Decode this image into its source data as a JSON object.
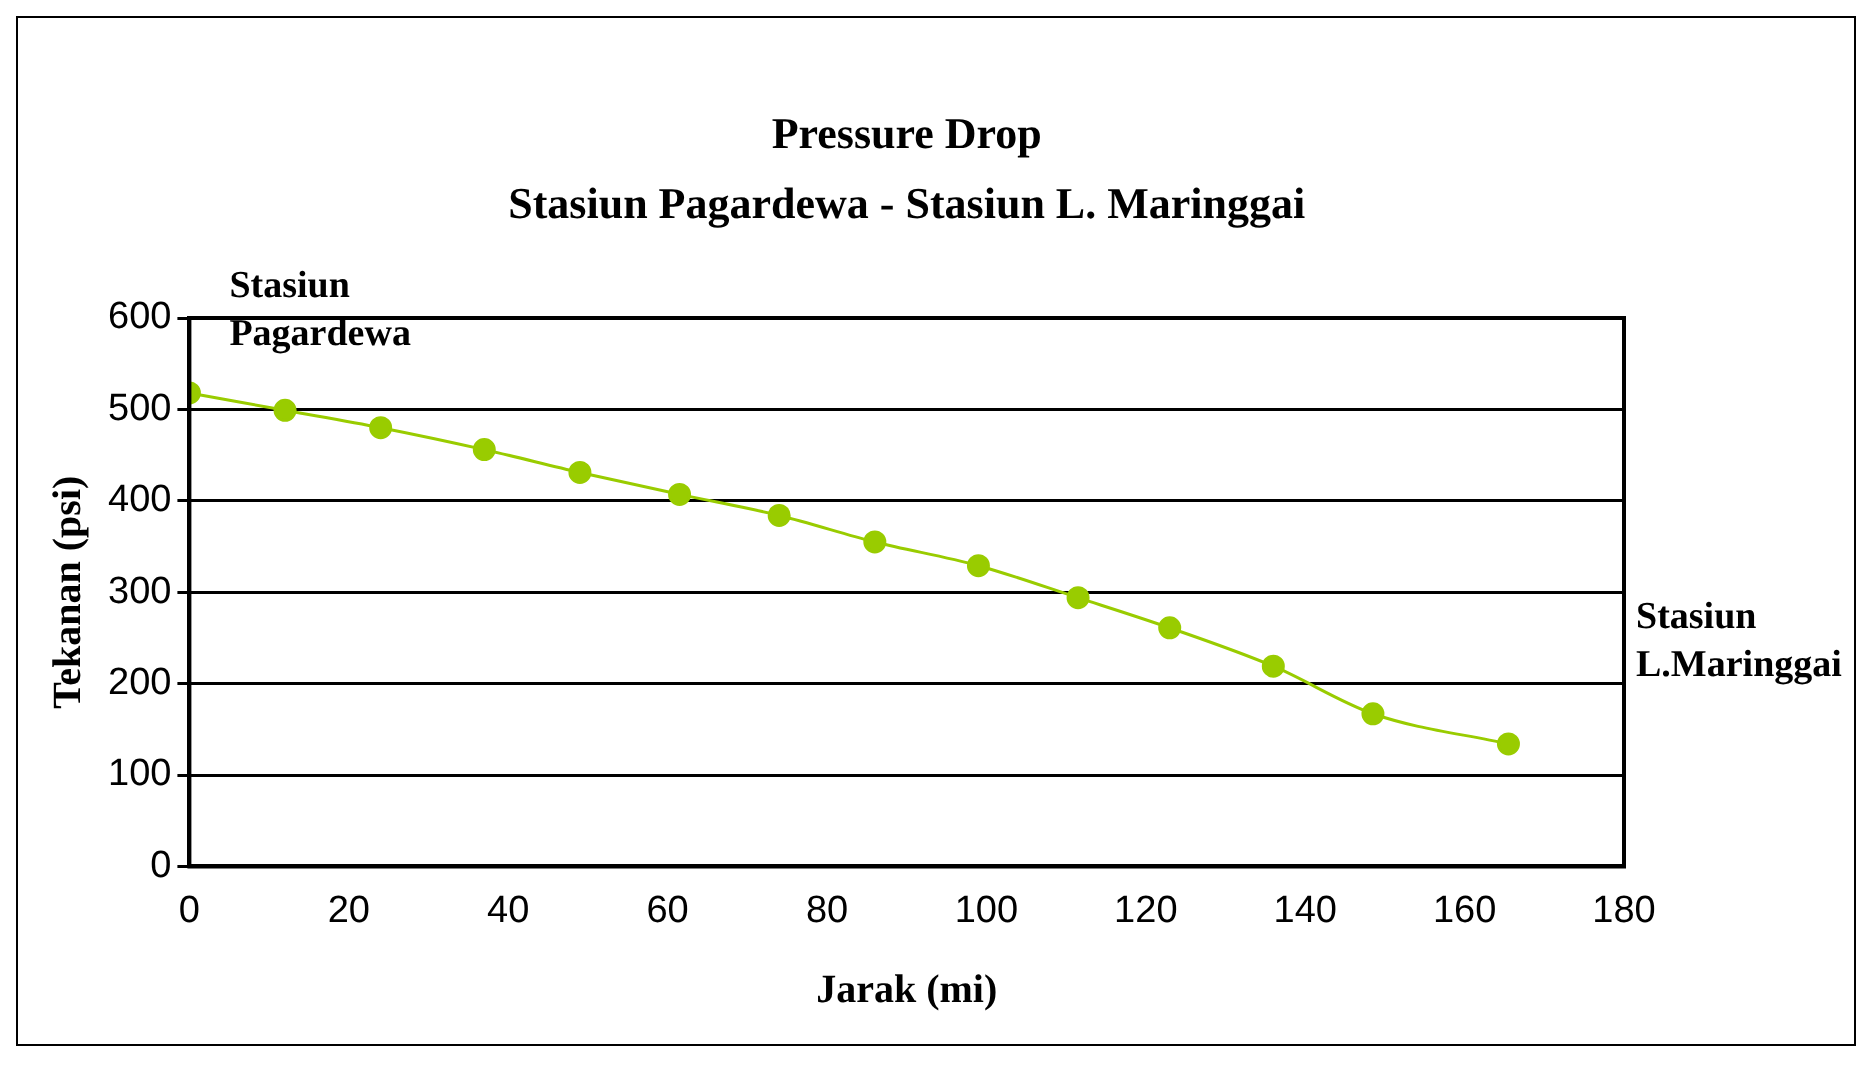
{
  "chart_data": {
    "type": "line",
    "title": "Pressure Drop",
    "subtitle": "Stasiun Pagardewa - Stasiun L. Maringgai",
    "xlabel": "Jarak (mi)",
    "ylabel": "Tekanan (psi)",
    "x": [
      0,
      12,
      24,
      37,
      49,
      61.5,
      74,
      86,
      99,
      111.5,
      123,
      136,
      148.5,
      165.5
    ],
    "series": [
      {
        "color": "#99cc00",
        "values": [
          518,
          499,
          480,
          456,
          431,
          407,
          384,
          355,
          329,
          294,
          261,
          219,
          167,
          134
        ]
      }
    ],
    "xlim": [
      0,
      180
    ],
    "xticks": [
      0,
      20,
      40,
      60,
      80,
      100,
      120,
      140,
      160,
      180
    ],
    "ylim": [
      0,
      600
    ],
    "yticks": [
      0,
      100,
      200,
      300,
      400,
      500,
      600
    ],
    "grid": "y",
    "legend": false,
    "marker": "circle",
    "line_style": "solid",
    "annotations": [
      {
        "text": "Stasiun\nPagardewa",
        "x": 0,
        "y": 518
      },
      "Stasiun\nL.Maringgai"
    ]
  }
}
